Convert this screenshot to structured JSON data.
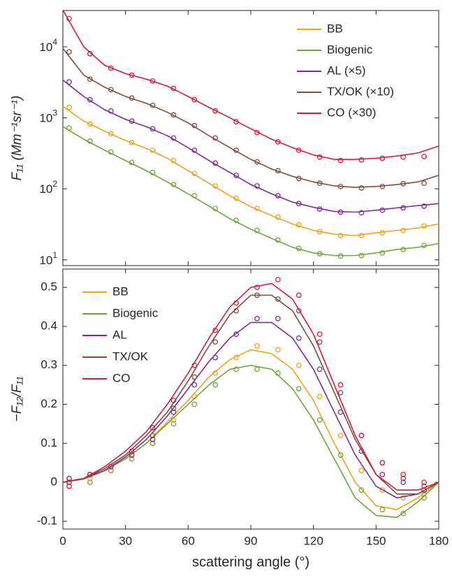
{
  "chart_data": [
    {
      "type": "line",
      "log": true,
      "legend": "upper right",
      "ylabel": "F₁₁ (Mm⁻¹sr⁻¹)",
      "ylim": [
        8.3,
        32500
      ],
      "xlim": [
        0,
        180
      ],
      "yticks": [
        {
          "value": 10,
          "label": "10",
          "exponent": "1"
        },
        {
          "value": 100,
          "label": "10",
          "exponent": "2"
        },
        {
          "value": 1000,
          "label": "10",
          "exponent": "3"
        },
        {
          "value": 10000,
          "label": "10",
          "exponent": "4"
        }
      ],
      "xticks": [
        0,
        30,
        60,
        90,
        120,
        150,
        180
      ],
      "x": [
        0,
        10,
        20,
        30,
        40,
        50,
        60,
        70,
        80,
        90,
        100,
        110,
        120,
        130,
        140,
        150,
        160,
        170,
        180
      ],
      "marker_x": [
        3,
        13,
        23,
        33,
        43,
        53,
        63,
        73,
        83,
        93,
        103,
        113,
        123,
        133,
        143,
        153,
        163,
        173
      ],
      "series": [
        {
          "name": "BB",
          "color": "#EDA31E",
          "values": [
            1450,
            900,
            650,
            480,
            370,
            270,
            180,
            120,
            80,
            56,
            42,
            32,
            26,
            23,
            22,
            24,
            26,
            28,
            32
          ],
          "marker_values": [
            1400,
            820,
            600,
            450,
            350,
            250,
            165,
            110,
            74,
            53,
            40,
            31,
            25,
            22,
            22,
            24,
            26,
            30
          ]
        },
        {
          "name": "Biogenic",
          "color": "#6FA53A",
          "values": [
            750,
            500,
            350,
            250,
            180,
            125,
            85,
            57,
            38,
            27,
            20,
            15,
            12.5,
            11.5,
            11.5,
            12.5,
            14,
            15,
            17
          ],
          "marker_values": [
            720,
            470,
            330,
            235,
            170,
            115,
            80,
            53,
            36,
            26,
            19,
            14.5,
            12.2,
            11.3,
            11.5,
            12.5,
            14,
            16
          ]
        },
        {
          "name": "AL  (×5)",
          "color": "#7B2C95",
          "values": [
            3400,
            2000,
            1300,
            950,
            750,
            560,
            380,
            250,
            170,
            115,
            85,
            65,
            55,
            48,
            47,
            50,
            54,
            58,
            62
          ],
          "marker_values": [
            3200,
            1800,
            1250,
            900,
            700,
            520,
            350,
            230,
            155,
            110,
            80,
            62,
            52,
            47,
            46,
            50,
            54,
            57
          ]
        },
        {
          "name": "TX/OK  (×10)",
          "color": "#7E4E3A",
          "values": [
            9500,
            4000,
            2700,
            2000,
            1600,
            1200,
            850,
            560,
            380,
            260,
            190,
            150,
            125,
            110,
            105,
            108,
            115,
            125,
            155
          ],
          "marker_values": [
            8500,
            3500,
            2500,
            1900,
            1500,
            1100,
            780,
            520,
            350,
            240,
            180,
            140,
            120,
            108,
            103,
            108,
            118,
            120
          ]
        },
        {
          "name": "CO  (×30)",
          "color": "#D81B3C",
          "values": [
            33000,
            10000,
            5500,
            4200,
            3500,
            2800,
            2000,
            1400,
            1000,
            700,
            500,
            380,
            300,
            260,
            260,
            270,
            290,
            320,
            400
          ],
          "marker_values": [
            25000,
            8000,
            5000,
            4000,
            3300,
            2600,
            1800,
            1250,
            880,
            620,
            460,
            350,
            280,
            250,
            255,
            270,
            280,
            285
          ]
        }
      ]
    },
    {
      "type": "line",
      "log": false,
      "legend": "upper left",
      "ylabel": "−F₁₂/F₁₁",
      "xlabel": "scattering angle (°)",
      "ylim": [
        -0.12,
        0.547
      ],
      "xlim": [
        0,
        180
      ],
      "yticks": [
        -0.1,
        0,
        0.1,
        0.2,
        0.3,
        0.4,
        0.5
      ],
      "xticks": [
        0,
        30,
        60,
        90,
        120,
        150,
        180
      ],
      "x": [
        0,
        10,
        20,
        30,
        40,
        50,
        60,
        70,
        80,
        90,
        100,
        110,
        120,
        130,
        140,
        150,
        160,
        170,
        180
      ],
      "marker_x": [
        3,
        13,
        23,
        33,
        43,
        53,
        63,
        73,
        83,
        93,
        103,
        113,
        123,
        133,
        143,
        153,
        163,
        173
      ],
      "series": [
        {
          "name": "BB",
          "color": "#EDA31E",
          "values": [
            0,
            0.01,
            0.03,
            0.06,
            0.1,
            0.155,
            0.21,
            0.27,
            0.315,
            0.34,
            0.33,
            0.29,
            0.21,
            0.1,
            0,
            -0.06,
            -0.07,
            -0.04,
            0
          ],
          "marker_values": [
            0,
            0.01,
            0.04,
            0.07,
            0.1,
            0.16,
            0.22,
            0.28,
            0.32,
            0.35,
            0.34,
            0.3,
            0.22,
            0.12,
            0.03,
            -0.02,
            -0.04,
            -0.03
          ]
        },
        {
          "name": "Biogenic",
          "color": "#6FA53A",
          "values": [
            0,
            0.008,
            0.03,
            0.06,
            0.1,
            0.15,
            0.2,
            0.25,
            0.29,
            0.3,
            0.29,
            0.24,
            0.16,
            0.06,
            -0.04,
            -0.085,
            -0.09,
            -0.05,
            0
          ],
          "marker_values": [
            -0.01,
            0,
            0.03,
            0.06,
            0.1,
            0.15,
            0.2,
            0.25,
            0.29,
            0.29,
            0.28,
            0.24,
            0.16,
            0.07,
            -0.02,
            -0.07,
            -0.08,
            -0.04
          ]
        },
        {
          "name": "AL",
          "color": "#7B2C95",
          "values": [
            0,
            0.01,
            0.03,
            0.065,
            0.11,
            0.17,
            0.24,
            0.31,
            0.37,
            0.41,
            0.41,
            0.37,
            0.29,
            0.18,
            0.07,
            -0.01,
            -0.04,
            -0.03,
            0
          ],
          "marker_values": [
            0.01,
            0.02,
            0.04,
            0.07,
            0.11,
            0.18,
            0.25,
            0.32,
            0.38,
            0.42,
            0.42,
            0.37,
            0.29,
            0.18,
            0.08,
            0.02,
            0,
            -0.02
          ]
        },
        {
          "name": "TX/OK",
          "color": "#7E4E3A",
          "values": [
            0,
            0.01,
            0.035,
            0.07,
            0.12,
            0.18,
            0.26,
            0.35,
            0.43,
            0.48,
            0.48,
            0.44,
            0.35,
            0.23,
            0.11,
            0.02,
            -0.03,
            -0.03,
            0
          ],
          "marker_values": [
            0,
            0.02,
            0.04,
            0.07,
            0.12,
            0.19,
            0.27,
            0.36,
            0.44,
            0.48,
            0.47,
            0.44,
            0.36,
            0.23,
            0.12,
            0.05,
            0.01,
            -0.01
          ]
        },
        {
          "name": "CO",
          "color": "#D81B3C",
          "values": [
            0,
            0.01,
            0.04,
            0.08,
            0.13,
            0.2,
            0.28,
            0.37,
            0.45,
            0.5,
            0.51,
            0.47,
            0.38,
            0.25,
            0.12,
            0.02,
            -0.02,
            -0.02,
            0
          ],
          "marker_values": [
            -0.01,
            0.02,
            0.04,
            0.08,
            0.14,
            0.21,
            0.3,
            0.39,
            0.46,
            0.5,
            0.52,
            0.48,
            0.38,
            0.25,
            0.12,
            0.05,
            0.02,
            0
          ]
        }
      ]
    }
  ]
}
